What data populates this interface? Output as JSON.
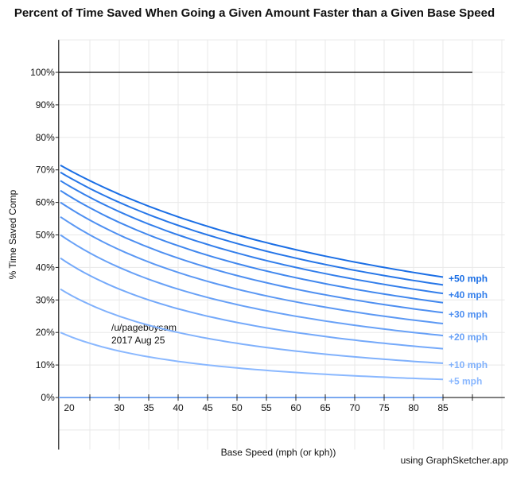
{
  "chart_data": {
    "type": "line",
    "title": "Percent of Time Saved When Going a Given Amount Faster than a Given Base Speed",
    "xlabel": "Base Speed (mph (or kph))",
    "ylabel": "% Time Saved Comp",
    "xlim": [
      19.7,
      95.5
    ],
    "ylim": [
      -16,
      110
    ],
    "x_ticks": [
      20,
      30,
      35,
      40,
      45,
      50,
      55,
      60,
      65,
      70,
      75,
      80,
      85
    ],
    "y_ticks": [
      "0%",
      "10%",
      "20%",
      "30%",
      "40%",
      "50%",
      "60%",
      "70%",
      "80%",
      "90%",
      "100%"
    ],
    "grid": true,
    "reference_line": {
      "y": 100,
      "color": "#000000"
    },
    "x_range": [
      20,
      85
    ],
    "series": [
      {
        "increase": 5,
        "color": "#8ab8ff"
      },
      {
        "increase": 10,
        "color": "#80b1fc"
      },
      {
        "increase": 15,
        "color": "#74a9fa"
      },
      {
        "increase": 20,
        "color": "#68a1f7"
      },
      {
        "increase": 25,
        "color": "#5b98f4"
      },
      {
        "increase": 30,
        "color": "#4e8ff1"
      },
      {
        "increase": 35,
        "color": "#4087ee"
      },
      {
        "increase": 40,
        "color": "#327eeb"
      },
      {
        "increase": 45,
        "color": "#2676e8"
      },
      {
        "increase": 50,
        "color": "#1a6ee5"
      }
    ],
    "curve_labels": [
      {
        "text": "+50 mph",
        "increase": 50
      },
      {
        "text": "+40 mph",
        "increase": 40
      },
      {
        "text": "+30 mph",
        "increase": 30
      },
      {
        "text": "+20 mph",
        "increase": 20
      },
      {
        "text": "+10 mph",
        "increase": 10
      },
      {
        "text": "+5 mph",
        "increase": 5
      }
    ],
    "annotation": [
      "/u/pageboysam",
      "2017 Aug 25"
    ],
    "credit": "using GraphSketcher.app"
  }
}
